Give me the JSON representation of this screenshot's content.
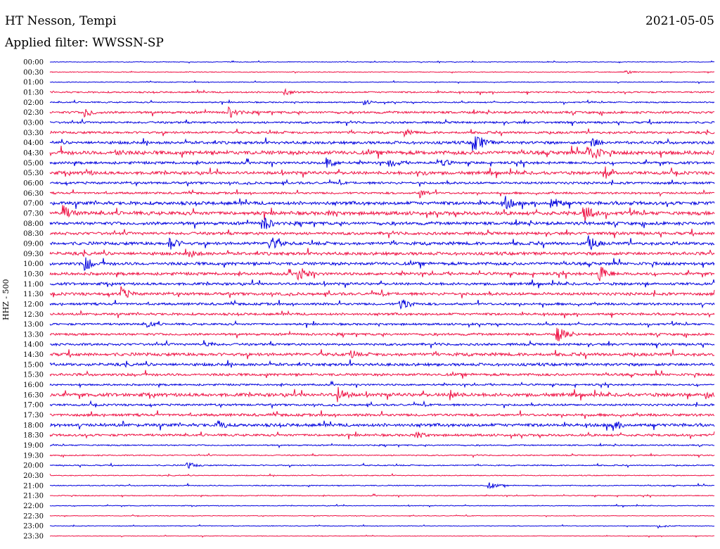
{
  "header": {
    "station": "HT Nesson, Tempi",
    "date": "2021-05-05",
    "filter": "Applied filter: WWSSN-SP"
  },
  "chart_data": {
    "type": "line",
    "title": "HT Nesson, Tempi",
    "subtitle": "Applied filter: WWSSN-SP",
    "ylabel": "HHZ - 500",
    "row_labels": [
      "00:00",
      "00:30",
      "01:00",
      "01:30",
      "02:00",
      "02:30",
      "03:00",
      "03:30",
      "04:00",
      "04:30",
      "05:00",
      "05:30",
      "06:00",
      "06:30",
      "07:00",
      "07:30",
      "08:00",
      "08:30",
      "09:00",
      "09:30",
      "10:00",
      "10:30",
      "11:00",
      "11:30",
      "12:00",
      "12:30",
      "13:00",
      "13:30",
      "14:00",
      "14:30",
      "15:00",
      "15:30",
      "16:00",
      "16:30",
      "17:00",
      "17:30",
      "18:00",
      "18:30",
      "19:00",
      "19:30",
      "20:00",
      "20:30",
      "21:00",
      "21:30",
      "22:00",
      "22:30",
      "23:00",
      "23:30"
    ],
    "series_colors": [
      "#0000dd",
      "#ee1144"
    ],
    "noise_level": [
      0.5,
      0.6,
      0.6,
      1.2,
      1.0,
      1.8,
      1.6,
      1.8,
      2.2,
      3.0,
      2.0,
      2.4,
      1.8,
      1.6,
      2.6,
      2.8,
      2.4,
      2.2,
      2.4,
      2.4,
      2.4,
      2.2,
      2.0,
      2.2,
      1.8,
      1.8,
      1.6,
      1.8,
      1.8,
      2.4,
      2.2,
      2.0,
      1.4,
      2.6,
      1.6,
      2.0,
      2.4,
      1.8,
      1.0,
      0.9,
      0.9,
      0.7,
      0.8,
      0.7,
      0.6,
      0.5,
      0.5,
      0.5
    ],
    "events": [
      {
        "row": 1,
        "minute": 26.0,
        "amp": 3
      },
      {
        "row": 3,
        "minute": 10.6,
        "amp": 5
      },
      {
        "row": 4,
        "minute": 14.2,
        "amp": 4
      },
      {
        "row": 5,
        "minute": 1.6,
        "amp": 7
      },
      {
        "row": 5,
        "minute": 8.1,
        "amp": 9
      },
      {
        "row": 7,
        "minute": 16.0,
        "amp": 6
      },
      {
        "row": 8,
        "minute": 19.1,
        "amp": 18
      },
      {
        "row": 8,
        "minute": 24.4,
        "amp": 10
      },
      {
        "row": 9,
        "minute": 3.0,
        "amp": 7
      },
      {
        "row": 9,
        "minute": 24.3,
        "amp": 18
      },
      {
        "row": 10,
        "minute": 12.5,
        "amp": 9
      },
      {
        "row": 10,
        "minute": 15.3,
        "amp": 9
      },
      {
        "row": 10,
        "minute": 17.6,
        "amp": 8
      },
      {
        "row": 11,
        "minute": 1.6,
        "amp": 6
      },
      {
        "row": 11,
        "minute": 16.6,
        "amp": 7
      },
      {
        "row": 11,
        "minute": 25.1,
        "amp": 10
      },
      {
        "row": 13,
        "minute": 16.7,
        "amp": 7
      },
      {
        "row": 14,
        "minute": 20.5,
        "amp": 12
      },
      {
        "row": 14,
        "minute": 22.6,
        "amp": 12
      },
      {
        "row": 15,
        "minute": 0.6,
        "amp": 12
      },
      {
        "row": 15,
        "minute": 12.6,
        "amp": 6
      },
      {
        "row": 15,
        "minute": 24.1,
        "amp": 14
      },
      {
        "row": 16,
        "minute": 9.6,
        "amp": 12
      },
      {
        "row": 18,
        "minute": 5.4,
        "amp": 11
      },
      {
        "row": 18,
        "minute": 9.9,
        "amp": 13
      },
      {
        "row": 18,
        "minute": 24.3,
        "amp": 12
      },
      {
        "row": 19,
        "minute": 6.4,
        "amp": 7
      },
      {
        "row": 20,
        "minute": 1.6,
        "amp": 11
      },
      {
        "row": 21,
        "minute": 11.2,
        "amp": 12
      },
      {
        "row": 21,
        "minute": 24.8,
        "amp": 13
      },
      {
        "row": 23,
        "minute": 3.2,
        "amp": 11
      },
      {
        "row": 24,
        "minute": 15.8,
        "amp": 11
      },
      {
        "row": 26,
        "minute": 4.4,
        "amp": 6
      },
      {
        "row": 27,
        "minute": 22.9,
        "amp": 12
      },
      {
        "row": 28,
        "minute": 7.0,
        "amp": 6
      },
      {
        "row": 29,
        "minute": 13.5,
        "amp": 7
      },
      {
        "row": 33,
        "minute": 13.0,
        "amp": 12
      },
      {
        "row": 33,
        "minute": 18.1,
        "amp": 9
      },
      {
        "row": 33,
        "minute": 29.6,
        "amp": 8
      },
      {
        "row": 36,
        "minute": 7.6,
        "amp": 8
      },
      {
        "row": 36,
        "minute": 25.4,
        "amp": 9
      },
      {
        "row": 37,
        "minute": 16.5,
        "amp": 7
      },
      {
        "row": 40,
        "minute": 6.2,
        "amp": 5
      },
      {
        "row": 42,
        "minute": 19.8,
        "amp": 5
      },
      {
        "row": 46,
        "minute": 27.5,
        "amp": 3
      }
    ]
  }
}
